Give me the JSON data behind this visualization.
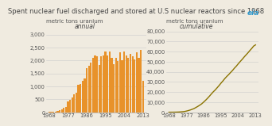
{
  "title": "Spent nuclear fuel discharged and stored at U.S nuclear reactors since 1968",
  "subtitle_left": "annual",
  "subtitle_right": "cumulative",
  "ylabel_left": "metric tons uranium",
  "ylabel_right": "metric tons uranium",
  "bar_color": "#E8922A",
  "line_color": "#8B7300",
  "bg_color": "#F0EBE0",
  "years": [
    1968,
    1969,
    1970,
    1971,
    1972,
    1973,
    1974,
    1975,
    1976,
    1977,
    1978,
    1979,
    1980,
    1981,
    1982,
    1983,
    1984,
    1985,
    1986,
    1987,
    1988,
    1989,
    1990,
    1991,
    1992,
    1993,
    1994,
    1995,
    1996,
    1997,
    1998,
    1999,
    2000,
    2001,
    2002,
    2003,
    2004,
    2005,
    2006,
    2007,
    2008,
    2009,
    2010,
    2011,
    2012,
    2013
  ],
  "annual": [
    10,
    15,
    20,
    30,
    40,
    80,
    120,
    160,
    200,
    420,
    480,
    580,
    680,
    760,
    1050,
    1100,
    1200,
    1300,
    1700,
    1800,
    1900,
    2100,
    2200,
    2150,
    1820,
    2150,
    2200,
    2350,
    2200,
    2350,
    2100,
    1850,
    2100,
    1980,
    2300,
    2000,
    2350,
    2200,
    2100,
    2250,
    2150,
    2050,
    2300,
    2100,
    2400,
    1200
  ],
  "cumulative": [
    10,
    25,
    45,
    75,
    115,
    195,
    315,
    475,
    675,
    1095,
    1575,
    2155,
    2835,
    3595,
    4645,
    5745,
    6945,
    8245,
    9945,
    11745,
    13645,
    15745,
    17945,
    20095,
    21915,
    24065,
    26265,
    28615,
    30815,
    33165,
    35265,
    37115,
    39215,
    41195,
    43495,
    45495,
    47845,
    50045,
    52145,
    54395,
    56545,
    58595,
    60895,
    62995,
    65395,
    66595
  ],
  "xticks": [
    1968,
    1977,
    1986,
    1995,
    2004,
    2013
  ],
  "yticks_left": [
    0,
    500,
    1000,
    1500,
    2000,
    2500,
    3000
  ],
  "yticks_right": [
    0,
    10000,
    20000,
    30000,
    40000,
    50000,
    60000,
    70000,
    80000
  ],
  "ylim_left": [
    0,
    3200
  ],
  "ylim_right": [
    0,
    82000
  ],
  "title_fontsize": 6.0,
  "subtitle_fontsize": 5.5,
  "label_fontsize": 5.0,
  "tick_fontsize": 4.8
}
